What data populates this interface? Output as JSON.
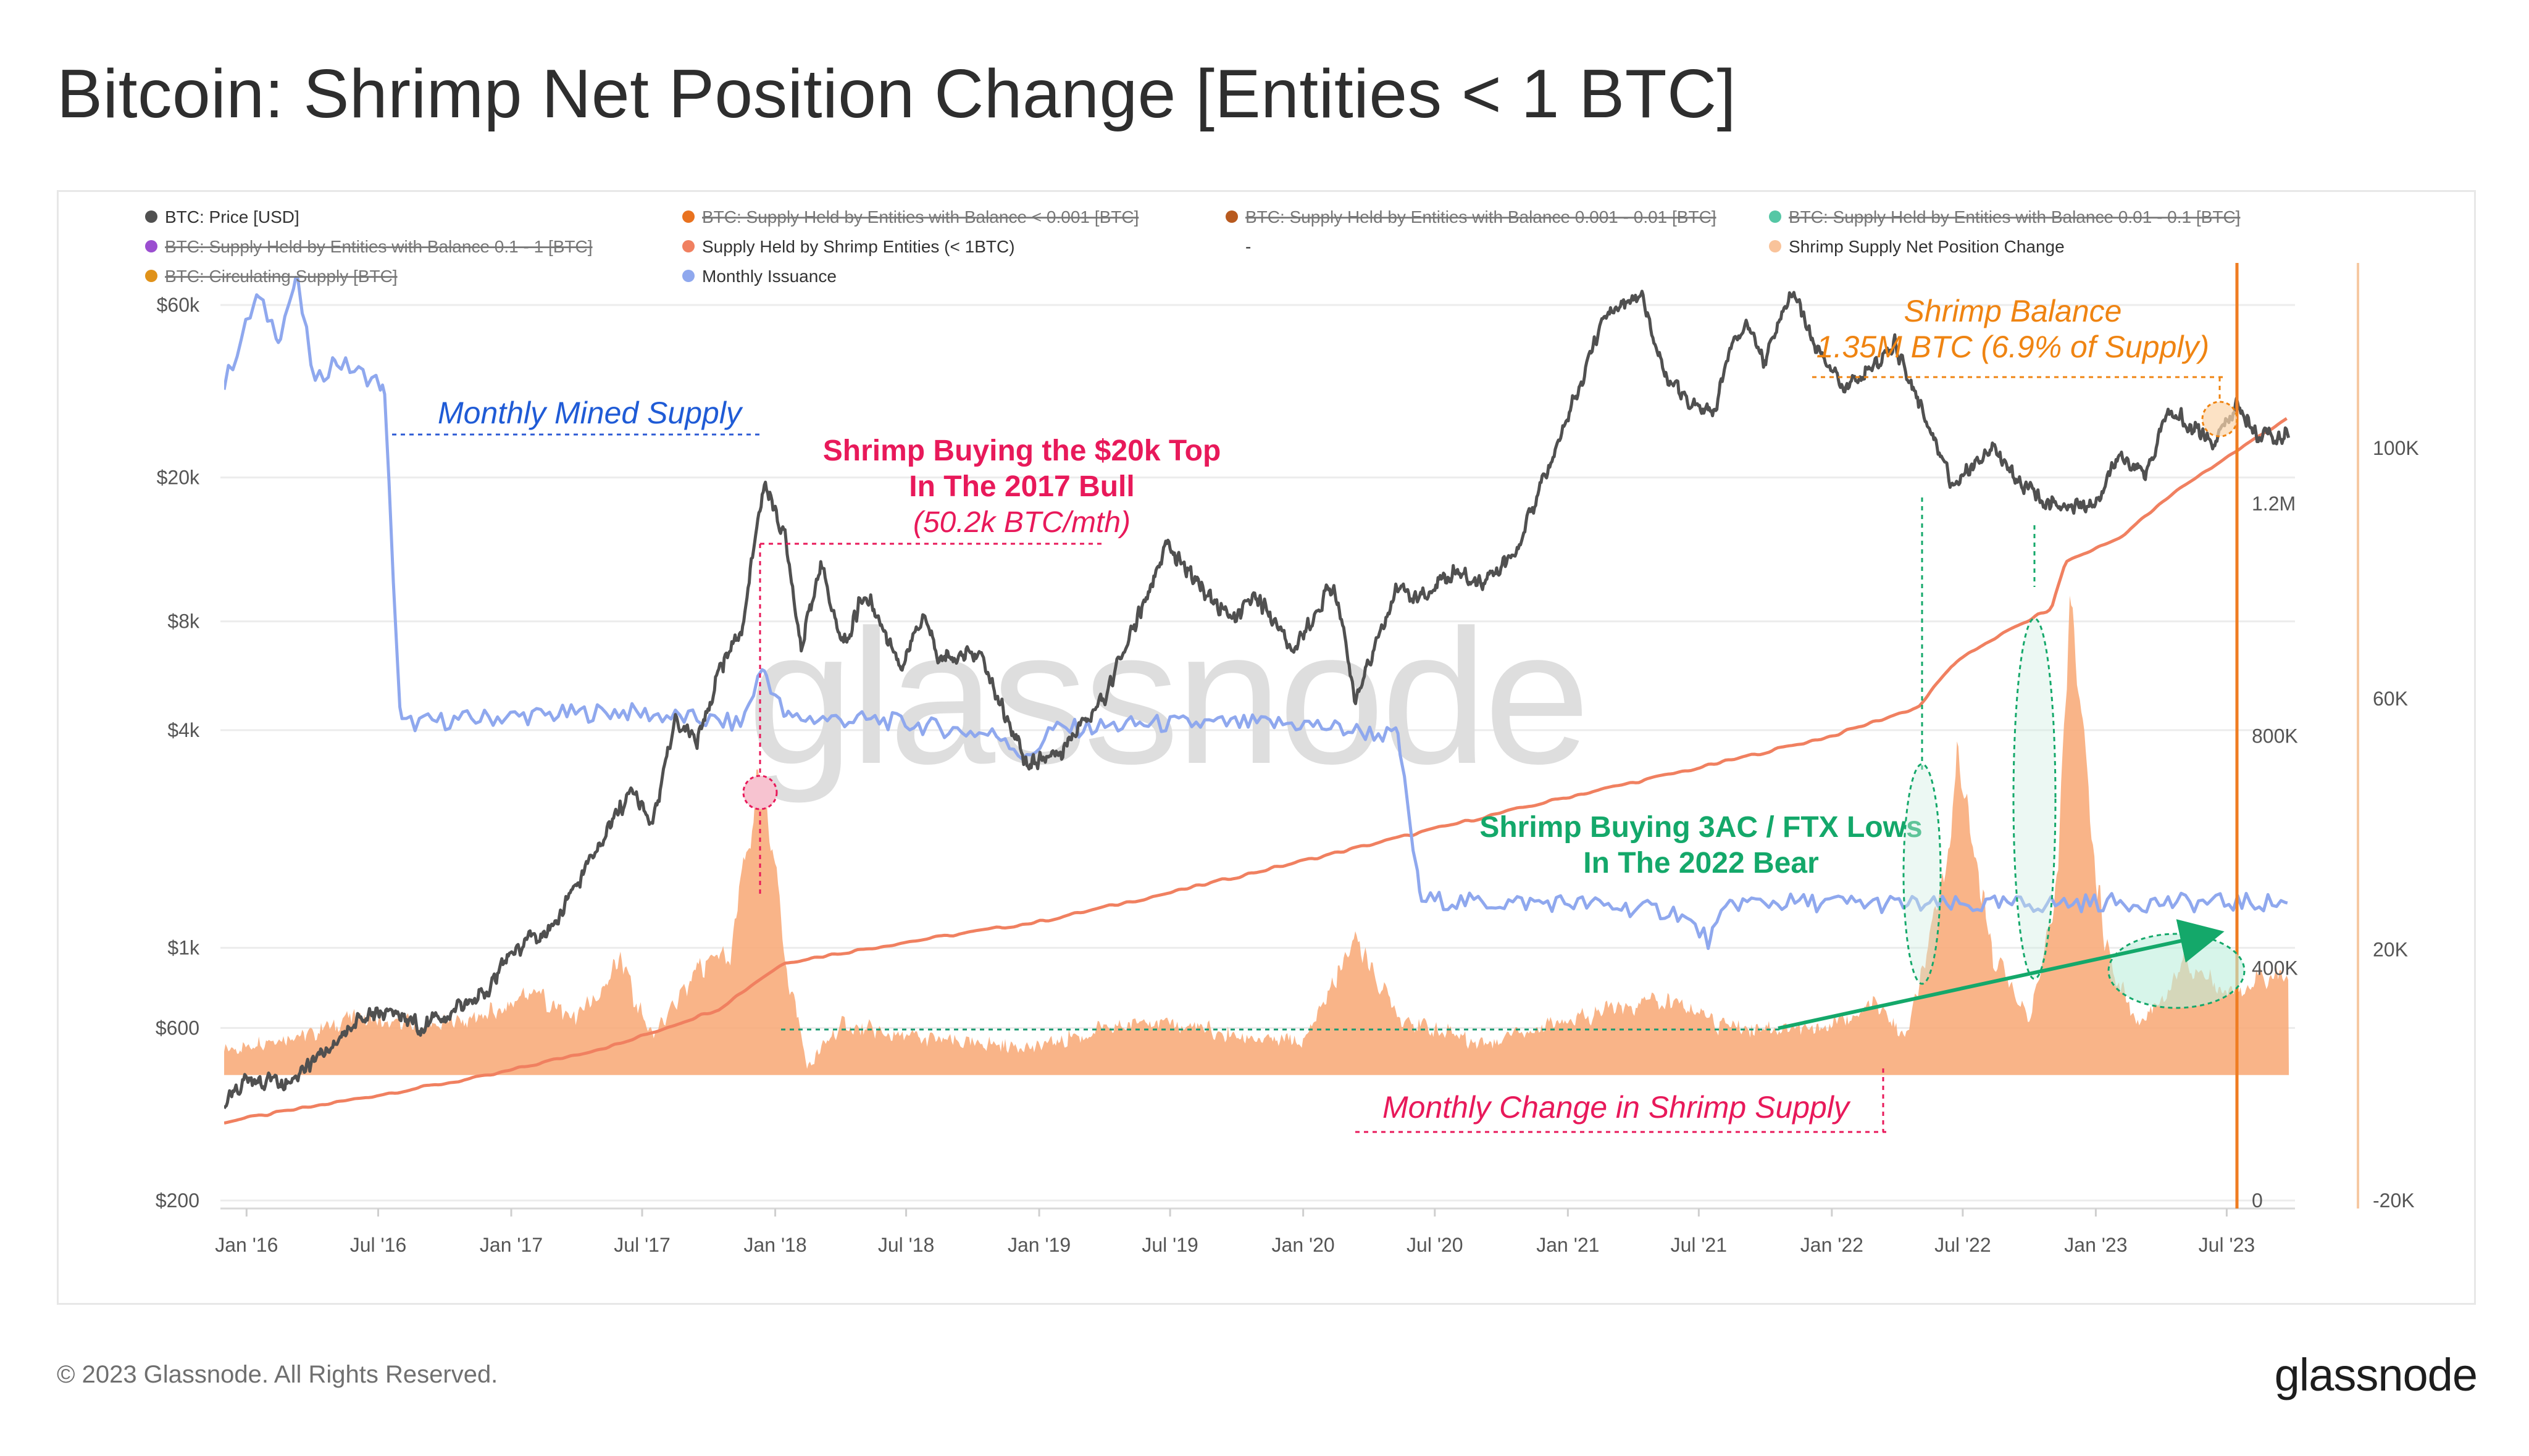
{
  "title": "Bitcoin: Shrimp Net Position Change [Entities < 1 BTC]",
  "footer": {
    "copyright": "© 2023 Glassnode. All Rights Reserved.",
    "logo": "glassnode"
  },
  "watermark": "glassnode",
  "colors": {
    "price": "#505050",
    "shrimp_supply": "#f08060",
    "net_change": "#f8aa78",
    "issuance": "#8fa8ee",
    "annot_blue": "#1f5bd6",
    "annot_pink": "#e8195a",
    "annot_green": "#14a86a",
    "annot_orange": "#ef8412",
    "axis_right": "#ef7d22"
  },
  "legend": [
    {
      "label": "BTC: Price [USD]",
      "color": "#505050",
      "active": true
    },
    {
      "label": "BTC: Supply Held by Entities with Balance < 0.001 [BTC]",
      "color": "#e9721f",
      "active": false
    },
    {
      "label": "BTC: Supply Held by Entities with Balance 0.001 - 0.01 [BTC]",
      "color": "#b85a1f",
      "active": false
    },
    {
      "label": "BTC: Supply Held by Entities with Balance 0.01 - 0.1 [BTC]",
      "color": "#55c7a5",
      "active": false
    },
    {
      "label": "BTC: Supply Held by Entities with Balance 0.1 - 1 [BTC]",
      "color": "#9b4ed0",
      "active": false
    },
    {
      "label": "Supply Held by Shrimp Entities (< 1BTC)",
      "color": "#f08060",
      "active": true
    },
    {
      "label": "-",
      "color": "none",
      "active": true
    },
    {
      "label": "Shrimp Supply Net Position Change",
      "color": "#f9c39a",
      "active": true
    },
    {
      "label": "BTC: Circulating Supply [BTC]",
      "color": "#e0921a",
      "active": false
    },
    {
      "label": "Monthly Issuance",
      "color": "#8fa8ee",
      "active": true
    }
  ],
  "annotations": {
    "mined_supply": "Monthly Mined Supply",
    "top_line1": "Shrimp Buying the $20k Top",
    "top_line2": "In The 2017 Bull",
    "top_line3": "(50.2k BTC/mth)",
    "balance_line1": "Shrimp Balance",
    "balance_line2": "1.35M BTC (6.9% of Supply)",
    "bear_line1": "Shrimp Buying 3AC / FTX Lows",
    "bear_line2": "In The 2022 Bear",
    "monthly_change": "Monthly Change in Shrimp Supply"
  },
  "chart_data": {
    "type": "line",
    "x_range": [
      "2015-12-01",
      "2023-09-30"
    ],
    "x_ticks": [
      "Jan '16",
      "Jul '16",
      "Jan '17",
      "Jul '17",
      "Jan '18",
      "Jul '18",
      "Jan '19",
      "Jul '19",
      "Jan '20",
      "Jul '20",
      "Jan '21",
      "Jul '21",
      "Jan '22",
      "Jul '22",
      "Jan '23",
      "Jul '23"
    ],
    "axes": {
      "price": {
        "scale": "log",
        "range": [
          200,
          80000
        ],
        "ticks": [
          {
            "v": 60000,
            "label": "$60k"
          },
          {
            "v": 20000,
            "label": "$20k"
          },
          {
            "v": 8000,
            "label": "$8k"
          },
          {
            "v": 4000,
            "label": "$4k"
          },
          {
            "v": 1000,
            "label": "$1k"
          },
          {
            "v": 600,
            "label": "$600"
          },
          {
            "v": 200,
            "label": "$200"
          }
        ]
      },
      "supply": {
        "scale": "linear",
        "range": [
          0,
          1620000
        ],
        "ticks": [
          {
            "v": 1200000,
            "label": "1.2M"
          },
          {
            "v": 800000,
            "label": "800K"
          },
          {
            "v": 400000,
            "label": "400K"
          },
          {
            "v": 0,
            "label": "0"
          }
        ]
      },
      "change": {
        "scale": "linear",
        "range": [
          -20000,
          130000
        ],
        "ticks": [
          {
            "v": 100000,
            "label": "100K"
          },
          {
            "v": 60000,
            "label": "60K"
          },
          {
            "v": 20000,
            "label": "20K"
          },
          {
            "v": -20000,
            "label": "-20K"
          }
        ]
      }
    },
    "series": [
      {
        "name": "BTC: Price [USD]",
        "axis": "price",
        "points": [
          [
            "2015-12-01",
            370
          ],
          [
            "2016-01-01",
            430
          ],
          [
            "2016-03-01",
            415
          ],
          [
            "2016-06-01",
            620
          ],
          [
            "2016-07-01",
            670
          ],
          [
            "2016-09-01",
            605
          ],
          [
            "2016-12-01",
            760
          ],
          [
            "2017-01-01",
            980
          ],
          [
            "2017-03-01",
            1150
          ],
          [
            "2017-05-01",
            1900
          ],
          [
            "2017-06-15",
            2700
          ],
          [
            "2017-07-15",
            2200
          ],
          [
            "2017-08-15",
            4200
          ],
          [
            "2017-09-15",
            3700
          ],
          [
            "2017-10-15",
            5700
          ],
          [
            "2017-11-15",
            7500
          ],
          [
            "2017-12-17",
            19500
          ],
          [
            "2018-01-15",
            13500
          ],
          [
            "2018-02-06",
            6900
          ],
          [
            "2018-03-05",
            11400
          ],
          [
            "2018-04-05",
            6700
          ],
          [
            "2018-05-05",
            9700
          ],
          [
            "2018-06-25",
            6000
          ],
          [
            "2018-07-25",
            8200
          ],
          [
            "2018-08-15",
            6300
          ],
          [
            "2018-10-15",
            6500
          ],
          [
            "2018-11-25",
            3800
          ],
          [
            "2018-12-15",
            3250
          ],
          [
            "2019-02-01",
            3450
          ],
          [
            "2019-04-02",
            5000
          ],
          [
            "2019-05-15",
            8000
          ],
          [
            "2019-06-26",
            12900
          ],
          [
            "2019-08-01",
            10500
          ],
          [
            "2019-09-25",
            8100
          ],
          [
            "2019-10-26",
            9500
          ],
          [
            "2019-12-18",
            6600
          ],
          [
            "2020-02-13",
            10300
          ],
          [
            "2020-03-12",
            4900
          ],
          [
            "2020-05-08",
            9800
          ],
          [
            "2020-06-15",
            9300
          ],
          [
            "2020-07-27",
            11000
          ],
          [
            "2020-09-05",
            10200
          ],
          [
            "2020-10-21",
            12500
          ],
          [
            "2020-11-25",
            19000
          ],
          [
            "2020-12-31",
            29000
          ],
          [
            "2021-02-21",
            57000
          ],
          [
            "2021-03-13",
            61000
          ],
          [
            "2021-04-14",
            63500
          ],
          [
            "2021-05-19",
            37000
          ],
          [
            "2021-06-22",
            31500
          ],
          [
            "2021-07-20",
            29800
          ],
          [
            "2021-08-20",
            49000
          ],
          [
            "2021-09-07",
            52000
          ],
          [
            "2021-09-29",
            42000
          ],
          [
            "2021-11-10",
            67000
          ],
          [
            "2021-12-04",
            48000
          ],
          [
            "2022-01-22",
            35000
          ],
          [
            "2022-03-29",
            47000
          ],
          [
            "2022-05-12",
            29000
          ],
          [
            "2022-06-18",
            19000
          ],
          [
            "2022-08-15",
            24200
          ],
          [
            "2022-09-20",
            19000
          ],
          [
            "2022-11-09",
            16500
          ],
          [
            "2022-12-31",
            16550
          ],
          [
            "2023-01-31",
            23100
          ],
          [
            "2023-03-10",
            20000
          ],
          [
            "2023-04-14",
            30400
          ],
          [
            "2023-06-15",
            25000
          ],
          [
            "2023-07-14",
            31300
          ],
          [
            "2023-08-17",
            26000
          ],
          [
            "2023-09-25",
            26300
          ]
        ]
      },
      {
        "name": "Supply Held by Shrimp Entities (< 1BTC)",
        "axis": "supply",
        "points": [
          [
            "2015-12-01",
            135000
          ],
          [
            "2016-06-01",
            175000
          ],
          [
            "2016-12-01",
            215000
          ],
          [
            "2017-06-01",
            270000
          ],
          [
            "2017-10-15",
            330000
          ],
          [
            "2017-12-15",
            385000
          ],
          [
            "2018-01-15",
            410000
          ],
          [
            "2018-07-01",
            445000
          ],
          [
            "2019-01-01",
            480000
          ],
          [
            "2019-07-01",
            530000
          ],
          [
            "2020-01-01",
            585000
          ],
          [
            "2020-07-01",
            640000
          ],
          [
            "2021-01-01",
            695000
          ],
          [
            "2021-07-01",
            745000
          ],
          [
            "2022-01-01",
            800000
          ],
          [
            "2022-05-01",
            850000
          ],
          [
            "2022-06-15",
            920000
          ],
          [
            "2022-08-01",
            960000
          ],
          [
            "2022-11-01",
            1020000
          ],
          [
            "2022-11-20",
            1100000
          ],
          [
            "2023-02-01",
            1140000
          ],
          [
            "2023-05-01",
            1230000
          ],
          [
            "2023-09-25",
            1350000
          ]
        ]
      },
      {
        "name": "Monthly Issuance",
        "axis": "change",
        "points": [
          [
            "2015-12-01",
            110000
          ],
          [
            "2016-01-15",
            124000
          ],
          [
            "2016-02-15",
            118000
          ],
          [
            "2016-03-10",
            127000
          ],
          [
            "2016-04-05",
            110000
          ],
          [
            "2016-05-01",
            114000
          ],
          [
            "2016-07-09",
            110000
          ],
          [
            "2016-08-01",
            56000
          ],
          [
            "2016-12-01",
            57000
          ],
          [
            "2017-06-01",
            58000
          ],
          [
            "2017-11-15",
            56000
          ],
          [
            "2017-12-15",
            65000
          ],
          [
            "2018-01-15",
            57000
          ],
          [
            "2018-06-01",
            56500
          ],
          [
            "2018-11-15",
            54000
          ],
          [
            "2018-12-15",
            50000
          ],
          [
            "2019-01-15",
            55000
          ],
          [
            "2019-06-01",
            56000
          ],
          [
            "2020-01-01",
            56000
          ],
          [
            "2020-05-11",
            54000
          ],
          [
            "2020-06-11",
            28000
          ],
          [
            "2020-09-01",
            27500
          ],
          [
            "2021-01-01",
            27500
          ],
          [
            "2021-06-01",
            26000
          ],
          [
            "2021-07-15",
            21500
          ],
          [
            "2021-08-15",
            27500
          ],
          [
            "2022-01-01",
            27500
          ],
          [
            "2022-07-01",
            27000
          ],
          [
            "2023-01-01",
            27500
          ],
          [
            "2023-09-25",
            27500
          ]
        ]
      },
      {
        "name": "Shrimp Supply Net Position Change",
        "axis": "change",
        "type": "area",
        "points": [
          [
            "2015-12-01",
            4000
          ],
          [
            "2016-03-01",
            6000
          ],
          [
            "2016-06-01",
            9000
          ],
          [
            "2016-09-01",
            8000
          ],
          [
            "2016-12-01",
            10000
          ],
          [
            "2017-02-01",
            13000
          ],
          [
            "2017-04-01",
            9000
          ],
          [
            "2017-06-01",
            18000
          ],
          [
            "2017-07-15",
            6000
          ],
          [
            "2017-09-15",
            16000
          ],
          [
            "2017-11-01",
            20000
          ],
          [
            "2017-12-15",
            50200
          ],
          [
            "2018-01-15",
            18000
          ],
          [
            "2018-02-15",
            1000
          ],
          [
            "2018-04-01",
            8000
          ],
          [
            "2018-07-01",
            6000
          ],
          [
            "2018-10-01",
            5000
          ],
          [
            "2019-01-01",
            4500
          ],
          [
            "2019-06-01",
            9000
          ],
          [
            "2019-10-01",
            6000
          ],
          [
            "2020-01-01",
            5000
          ],
          [
            "2020-03-15",
            21000
          ],
          [
            "2020-05-15",
            9000
          ],
          [
            "2020-09-01",
            5000
          ],
          [
            "2021-01-01",
            9000
          ],
          [
            "2021-05-20",
            12000
          ],
          [
            "2021-08-01",
            8000
          ],
          [
            "2021-12-01",
            7000
          ],
          [
            "2022-02-01",
            9000
          ],
          [
            "2022-03-01",
            11000
          ],
          [
            "2022-04-15",
            6000
          ],
          [
            "2022-05-20",
            22000
          ],
          [
            "2022-06-25",
            50000
          ],
          [
            "2022-08-10",
            20000
          ],
          [
            "2022-10-01",
            9000
          ],
          [
            "2022-11-10",
            30000
          ],
          [
            "2022-11-25",
            78000
          ],
          [
            "2022-12-20",
            45000
          ],
          [
            "2023-01-15",
            20000
          ],
          [
            "2023-03-01",
            8000
          ],
          [
            "2023-05-01",
            17000
          ],
          [
            "2023-07-01",
            13000
          ],
          [
            "2023-09-25",
            17000
          ]
        ]
      }
    ]
  }
}
